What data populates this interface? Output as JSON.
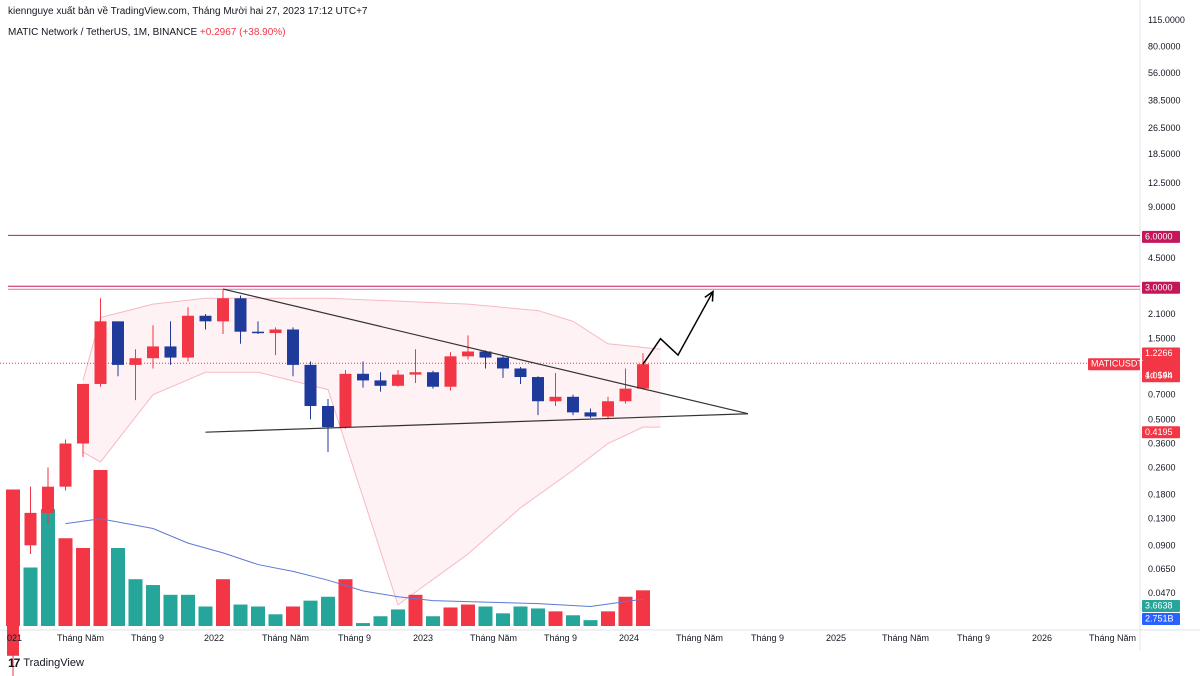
{
  "header": {
    "publisher_line": "kiennguye xuất bản về TradingView.com, Tháng Mười hai 27, 2023 17:12 UTC+7",
    "symbol_line": "MATIC Network / TetherUS, 1M, BINANCE",
    "change_text": "+0.2967 (+38.90%)"
  },
  "footer": {
    "logo_text": "TradingView",
    "logo_mark": "17"
  },
  "colors": {
    "up": "#f23645",
    "down": "#1e3a9a",
    "vol_up": "#f23645",
    "vol_down": "#26a69a",
    "level_line": "#c2185b",
    "pink_band": "#f7b9c4",
    "volume_ma": "#5b7bd5",
    "price_badge": "#f23645",
    "vol_badge": "#26a69a",
    "vol_ma_badge": "#2962ff"
  },
  "chart_data": {
    "type": "candlestick",
    "title": "MATIC Network / TetherUS, 1M, BINANCE",
    "scale": "log",
    "ylim": [
      0.03,
      115
    ],
    "price_axis_ticks": [
      "115.0000",
      "80.0000",
      "56.0000",
      "38.5000",
      "26.5000",
      "18.5000",
      "12.5000",
      "9.0000",
      "6.0000",
      "4.5000",
      "3.0000",
      "2.1000",
      "1.5000",
      "1.2266",
      "1.0594",
      "0.7000",
      "0.5000",
      "0.4195",
      "0.3600",
      "0.2600",
      "0.1800",
      "0.1300",
      "0.0900",
      "0.0650",
      "0.0470"
    ],
    "time_axis_labels": [
      "021",
      "Tháng Năm",
      "Tháng 9",
      "2022",
      "Tháng Năm",
      "Tháng 9",
      "2023",
      "Tháng Năm",
      "Tháng 9",
      "2024",
      "Tháng Năm",
      "Tháng 9",
      "2025",
      "Tháng Năm",
      "Tháng 9",
      "2026",
      "Tháng Năm"
    ],
    "candles": [
      {
        "o": 0.02,
        "h": 0.1,
        "l": 0.015,
        "c": 0.09
      },
      {
        "o": 0.09,
        "h": 0.2,
        "l": 0.08,
        "c": 0.14
      },
      {
        "o": 0.14,
        "h": 0.26,
        "l": 0.12,
        "c": 0.2
      },
      {
        "o": 0.2,
        "h": 0.38,
        "l": 0.19,
        "c": 0.36
      },
      {
        "o": 0.36,
        "h": 0.8,
        "l": 0.3,
        "c": 0.81
      },
      {
        "o": 0.81,
        "h": 2.6,
        "l": 0.78,
        "c": 1.9
      },
      {
        "o": 1.9,
        "h": 1.9,
        "l": 0.9,
        "c": 1.05
      },
      {
        "o": 1.05,
        "h": 1.3,
        "l": 0.65,
        "c": 1.15
      },
      {
        "o": 1.15,
        "h": 1.8,
        "l": 1.0,
        "c": 1.35
      },
      {
        "o": 1.35,
        "h": 1.9,
        "l": 1.05,
        "c": 1.16
      },
      {
        "o": 1.16,
        "h": 2.3,
        "l": 1.1,
        "c": 2.05
      },
      {
        "o": 2.05,
        "h": 2.1,
        "l": 1.7,
        "c": 1.9
      },
      {
        "o": 1.9,
        "h": 2.92,
        "l": 1.6,
        "c": 2.6
      },
      {
        "o": 2.6,
        "h": 2.7,
        "l": 1.4,
        "c": 1.65
      },
      {
        "o": 1.65,
        "h": 1.9,
        "l": 1.6,
        "c": 1.62
      },
      {
        "o": 1.62,
        "h": 1.75,
        "l": 1.2,
        "c": 1.7
      },
      {
        "o": 1.7,
        "h": 1.75,
        "l": 0.9,
        "c": 1.05
      },
      {
        "o": 1.05,
        "h": 1.1,
        "l": 0.5,
        "c": 0.6
      },
      {
        "o": 0.6,
        "h": 0.66,
        "l": 0.32,
        "c": 0.45
      },
      {
        "o": 0.45,
        "h": 0.98,
        "l": 0.44,
        "c": 0.93
      },
      {
        "o": 0.93,
        "h": 1.1,
        "l": 0.77,
        "c": 0.85
      },
      {
        "o": 0.85,
        "h": 0.95,
        "l": 0.73,
        "c": 0.79
      },
      {
        "o": 0.79,
        "h": 0.98,
        "l": 0.78,
        "c": 0.92
      },
      {
        "o": 0.92,
        "h": 1.3,
        "l": 0.82,
        "c": 0.95
      },
      {
        "o": 0.95,
        "h": 0.97,
        "l": 0.76,
        "c": 0.78
      },
      {
        "o": 0.78,
        "h": 1.25,
        "l": 0.74,
        "c": 1.18
      },
      {
        "o": 1.18,
        "h": 1.57,
        "l": 1.13,
        "c": 1.26
      },
      {
        "o": 1.26,
        "h": 1.28,
        "l": 1.0,
        "c": 1.16
      },
      {
        "o": 1.16,
        "h": 1.2,
        "l": 0.88,
        "c": 1.0
      },
      {
        "o": 1.0,
        "h": 1.02,
        "l": 0.81,
        "c": 0.89
      },
      {
        "o": 0.89,
        "h": 0.9,
        "l": 0.53,
        "c": 0.64
      },
      {
        "o": 0.64,
        "h": 0.94,
        "l": 0.6,
        "c": 0.68
      },
      {
        "o": 0.68,
        "h": 0.7,
        "l": 0.53,
        "c": 0.55
      },
      {
        "o": 0.55,
        "h": 0.58,
        "l": 0.51,
        "c": 0.52
      },
      {
        "o": 0.52,
        "h": 0.68,
        "l": 0.5,
        "c": 0.64
      },
      {
        "o": 0.64,
        "h": 1.0,
        "l": 0.62,
        "c": 0.76
      },
      {
        "o": 0.76,
        "h": 1.23,
        "l": 0.75,
        "c": 1.06
      }
    ],
    "volume": [
      {
        "v": 14,
        "up": false
      },
      {
        "v": 6,
        "up": true
      },
      {
        "v": 12,
        "up": true
      },
      {
        "v": 9,
        "up": false
      },
      {
        "v": 8,
        "up": false
      },
      {
        "v": 16,
        "up": false
      },
      {
        "v": 8,
        "up": true
      },
      {
        "v": 4.8,
        "up": true
      },
      {
        "v": 4.2,
        "up": true
      },
      {
        "v": 3.2,
        "up": true
      },
      {
        "v": 3.2,
        "up": true
      },
      {
        "v": 2.0,
        "up": true
      },
      {
        "v": 4.8,
        "up": false
      },
      {
        "v": 2.2,
        "up": true
      },
      {
        "v": 2.0,
        "up": true
      },
      {
        "v": 1.2,
        "up": true
      },
      {
        "v": 2.0,
        "up": false
      },
      {
        "v": 2.6,
        "up": true
      },
      {
        "v": 3.0,
        "up": true
      },
      {
        "v": 4.8,
        "up": false
      },
      {
        "v": 0.3,
        "up": true
      },
      {
        "v": 1.0,
        "up": true
      },
      {
        "v": 1.7,
        "up": true
      },
      {
        "v": 3.2,
        "up": false
      },
      {
        "v": 1.0,
        "up": true
      },
      {
        "v": 1.9,
        "up": false
      },
      {
        "v": 2.2,
        "up": false
      },
      {
        "v": 2.0,
        "up": true
      },
      {
        "v": 1.3,
        "up": true
      },
      {
        "v": 2.0,
        "up": true
      },
      {
        "v": 1.8,
        "up": true
      },
      {
        "v": 1.5,
        "up": false
      },
      {
        "v": 1.1,
        "up": true
      },
      {
        "v": 0.6,
        "up": true
      },
      {
        "v": 1.5,
        "up": false
      },
      {
        "v": 3.0,
        "up": false
      },
      {
        "v": 3.66,
        "up": false
      }
    ],
    "volume_ma": [
      {
        "i": 3,
        "v": 10.5
      },
      {
        "i": 5,
        "v": 11
      },
      {
        "i": 8,
        "v": 10
      },
      {
        "i": 10,
        "v": 8.5
      },
      {
        "i": 12,
        "v": 7.5
      },
      {
        "i": 14,
        "v": 6.3
      },
      {
        "i": 16,
        "v": 5.6
      },
      {
        "i": 18,
        "v": 4.7
      },
      {
        "i": 20,
        "v": 3.6
      },
      {
        "i": 22,
        "v": 3.0
      },
      {
        "i": 24,
        "v": 2.6
      },
      {
        "i": 26,
        "v": 2.5
      },
      {
        "i": 28,
        "v": 2.4
      },
      {
        "i": 30,
        "v": 2.3
      },
      {
        "i": 33,
        "v": 2.0
      },
      {
        "i": 36,
        "v": 2.75
      }
    ],
    "levels": [
      {
        "value": 6.0,
        "label": "6.0000"
      },
      {
        "value": 3.0,
        "label": "3.0000"
      }
    ],
    "price_badges": {
      "current_price": "1.0594",
      "symbol": "MATICUSDT",
      "countdown": "4d 14h",
      "high_marker": "1.2266",
      "low_marker": "0.4195"
    },
    "volume_badges": {
      "volume": "3.6638",
      "volume_ma": "2.751B"
    },
    "triangle_lines": [
      {
        "from": {
          "i": 12,
          "p": 2.95
        },
        "to": {
          "i": 42,
          "p": 0.54
        }
      },
      {
        "from": {
          "i": 11,
          "p": 0.42
        },
        "to": {
          "i": 42,
          "p": 0.54
        }
      }
    ],
    "projection_arrow": [
      {
        "i": 36,
        "p": 1.06
      },
      {
        "i": 37,
        "p": 1.5
      },
      {
        "i": 38,
        "p": 1.2
      },
      {
        "i": 40,
        "p": 2.85
      }
    ],
    "bollinger_upper": [
      {
        "i": 4,
        "p": 0.85
      },
      {
        "i": 5,
        "p": 2.0
      },
      {
        "i": 8,
        "p": 2.4
      },
      {
        "i": 11,
        "p": 2.6
      },
      {
        "i": 14,
        "p": 2.6
      },
      {
        "i": 18,
        "p": 2.6
      },
      {
        "i": 22,
        "p": 2.5
      },
      {
        "i": 26,
        "p": 2.4
      },
      {
        "i": 30,
        "p": 2.2
      },
      {
        "i": 32,
        "p": 1.9
      },
      {
        "i": 34,
        "p": 1.4
      },
      {
        "i": 37,
        "p": 1.3
      }
    ],
    "bollinger_lower": [
      {
        "i": 4,
        "p": 0.32
      },
      {
        "i": 5,
        "p": 0.28
      },
      {
        "i": 8,
        "p": 0.7
      },
      {
        "i": 11,
        "p": 0.95
      },
      {
        "i": 14,
        "p": 0.95
      },
      {
        "i": 18,
        "p": 0.75
      },
      {
        "i": 22,
        "p": 0.04
      },
      {
        "i": 26,
        "p": 0.08
      },
      {
        "i": 29,
        "p": 0.15
      },
      {
        "i": 32,
        "p": 0.25
      },
      {
        "i": 34,
        "p": 0.36
      },
      {
        "i": 36,
        "p": 0.45
      },
      {
        "i": 37,
        "p": 0.45
      }
    ]
  }
}
